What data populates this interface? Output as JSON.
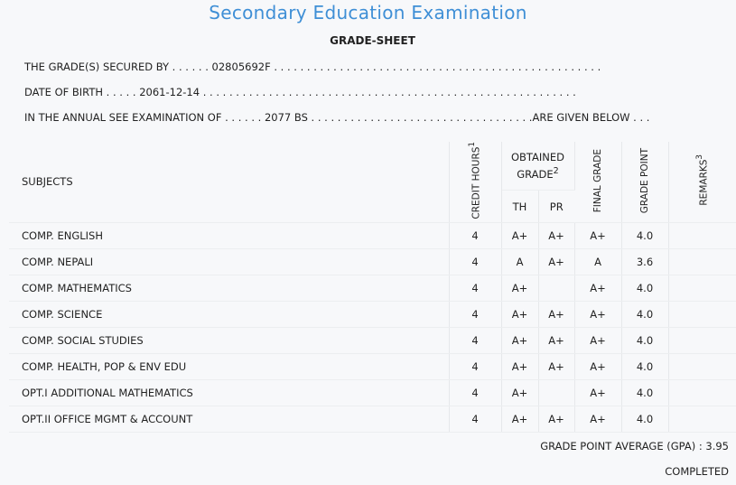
{
  "exam_title": "Secondary Education Examination",
  "sheet_title": "GRADE-SHEET",
  "info": {
    "secured_by_label": "THE GRADE(S) SECURED BY . . . . . .",
    "symbol_no": "02805692F",
    "secured_by_dots": ". . . . . . . . . . . . . . . . . . . . . . . . . . . . . . . . . . . . . . . . . . . . . . . . . .",
    "dob_label": "DATE OF BIRTH . . . . .",
    "dob": "2061-12-14",
    "dob_dots": ". . . . . . . . . . . . . . . . . . . . . . . . . . . . . . . . . . . . . . . . . . . . . . . . . . . . . . . . .",
    "exam_label": "IN THE ANNUAL SEE EXAMINATION OF . . . . . .",
    "exam_year": "2077 BS",
    "exam_dots": ". . . . . . . . . . . . . . . . . . . . . . . . . . . . . . . . . .",
    "exam_suffix": "ARE GIVEN BELOW . . ."
  },
  "headers": {
    "subjects": "SUBJECTS",
    "credit_hours": "CREDIT HOURS",
    "credit_sup": "1",
    "obtained_grade": "OBTAINED GRADE",
    "obtained_sup": "2",
    "th": "TH",
    "pr": "PR",
    "final_grade": "FINAL GRADE",
    "grade_point": "GRADE POINT",
    "remarks": "REMARKS",
    "remarks_sup": "3"
  },
  "rows": [
    {
      "subject": "COMP. ENGLISH",
      "credit": "4",
      "th": "A+",
      "pr": "A+",
      "final": "A+",
      "gp": "4.0",
      "remarks": ""
    },
    {
      "subject": "COMP. NEPALI",
      "credit": "4",
      "th": "A",
      "pr": "A+",
      "final": "A",
      "gp": "3.6",
      "remarks": ""
    },
    {
      "subject": "COMP. MATHEMATICS",
      "credit": "4",
      "th": "A+",
      "pr": "",
      "final": "A+",
      "gp": "4.0",
      "remarks": ""
    },
    {
      "subject": "COMP. SCIENCE",
      "credit": "4",
      "th": "A+",
      "pr": "A+",
      "final": "A+",
      "gp": "4.0",
      "remarks": ""
    },
    {
      "subject": "COMP. SOCIAL STUDIES",
      "credit": "4",
      "th": "A+",
      "pr": "A+",
      "final": "A+",
      "gp": "4.0",
      "remarks": ""
    },
    {
      "subject": "COMP. HEALTH, POP & ENV EDU",
      "credit": "4",
      "th": "A+",
      "pr": "A+",
      "final": "A+",
      "gp": "4.0",
      "remarks": ""
    },
    {
      "subject": "OPT.I ADDITIONAL MATHEMATICS",
      "credit": "4",
      "th": "A+",
      "pr": "",
      "final": "A+",
      "gp": "4.0",
      "remarks": ""
    },
    {
      "subject": "OPT.II OFFICE MGMT & ACCOUNT",
      "credit": "4",
      "th": "A+",
      "pr": "A+",
      "final": "A+",
      "gp": "4.0",
      "remarks": ""
    }
  ],
  "gpa_label": "GRADE POINT AVERAGE (GPA) : ",
  "gpa_value": "3.95",
  "status": "COMPLETED"
}
